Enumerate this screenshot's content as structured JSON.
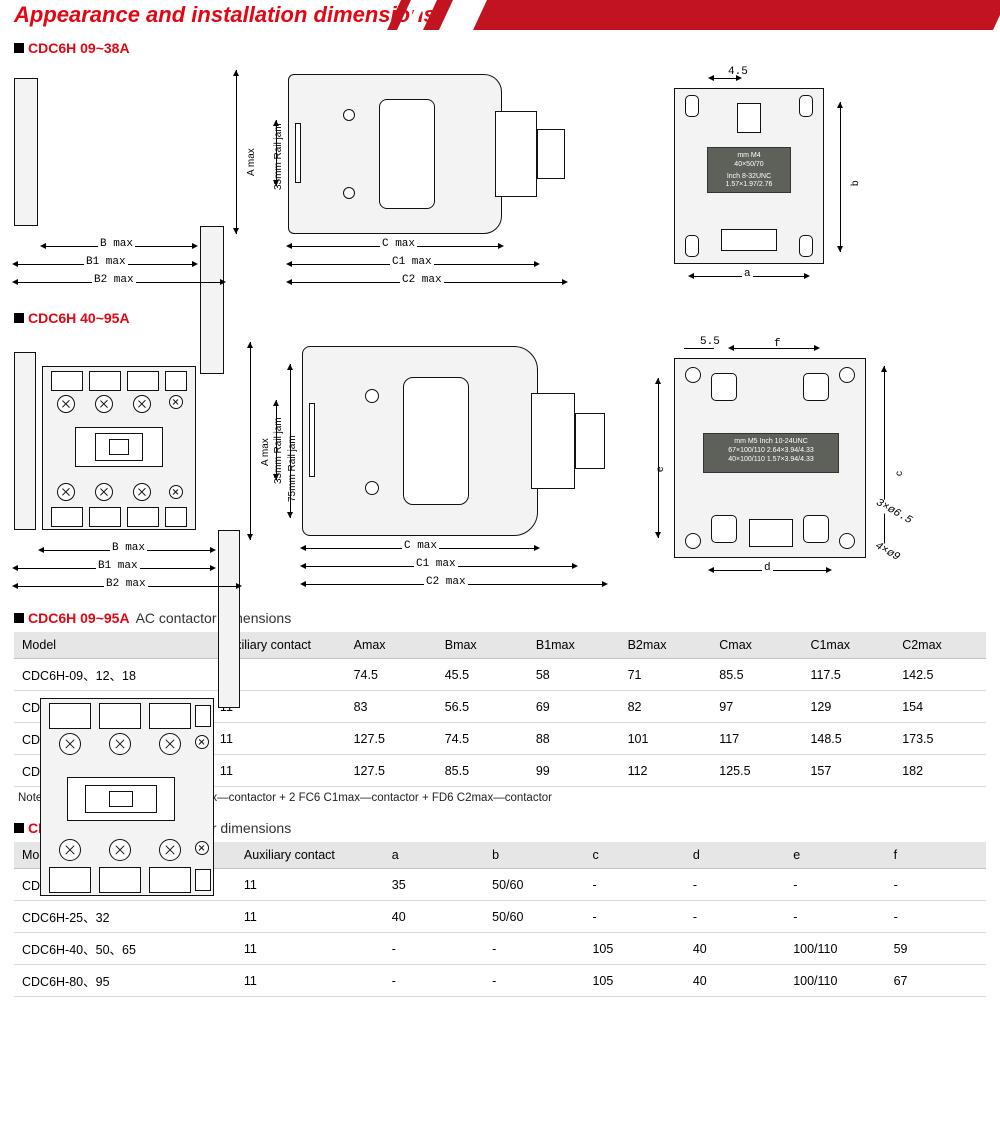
{
  "header": {
    "title": "Appearance and installation dimensions"
  },
  "sections": {
    "s1": "CDC6H 09~38A",
    "s2": "CDC6H 40~95A",
    "t1_red": "CDC6H 09~95A",
    "t1_sub": "AC contactor dimensions",
    "t2_red": "CDC6H 09~95A",
    "t2_sub": "AC contactor dimensions"
  },
  "dim_labels": {
    "A": "A max",
    "B": "B max",
    "B1": "B1 max",
    "B2": "B2 max",
    "C": "C max",
    "C1": "C1 max",
    "C2": "C2 max",
    "rail35": "35mm Rail jam",
    "rail75": "75mm Rail jam",
    "a": "a",
    "b": "b",
    "c": "c",
    "d": "d",
    "e": "e",
    "f": "f",
    "four_five": "4.5",
    "five_five": "5.5",
    "hole1": "3×ø6.5",
    "hole2": "4×ø9"
  },
  "mount1": {
    "ln1": "mm   M4",
    "ln2": "40×50/70",
    "ln3": "Inch 8-32UNC",
    "ln4": "1.57×1.97/2.76"
  },
  "mount2": {
    "ln1": "mm   M5   Inch 10-24UNC",
    "ln2": "67×100/110   2.64×3.94/4.33",
    "ln3": "40×100/110   1.57×3.94/4.33"
  },
  "colors": {
    "brand": "#e30613",
    "band": "#c11420",
    "th_bg": "#e6e6e6",
    "border": "#d9d9d9",
    "gray": "#f3f3f3"
  },
  "table1": {
    "columns": [
      "Model",
      "Auxiliary contact",
      "Amax",
      "Bmax",
      "B1max",
      "B2max",
      "Cmax",
      "C1max",
      "C2max"
    ],
    "rows": [
      [
        "CDC6H-09、12、18",
        "11",
        "74.5",
        "45.5",
        "58",
        "71",
        "85.5",
        "117.5",
        "142.5"
      ],
      [
        "CDC6H-25、32",
        "11",
        "83",
        "56.5",
        "69",
        "82",
        "97",
        "129",
        "154"
      ],
      [
        "CDC6H-40、50、65",
        "11",
        "127.5",
        "74.5",
        "88",
        "101",
        "117",
        "148.5",
        "173.5"
      ],
      [
        "CDC6H-80、95",
        "11",
        "127.5",
        "85.5",
        "99",
        "112",
        "125.5",
        "157",
        "182"
      ]
    ],
    "note": "Note: B1max—contactor + FC6 B2max—contactor + 2 FC6 C1max—contactor + FD6 C2max—contactor"
  },
  "table2": {
    "columns": [
      "Model",
      "Auxiliary contact",
      "a",
      "b",
      "c",
      "d",
      "e",
      "f"
    ],
    "rows": [
      [
        "CDC6H-09、12、18",
        "11",
        "35",
        "50/60",
        "-",
        "-",
        "-",
        "-"
      ],
      [
        "CDC6H-25、32",
        "11",
        "40",
        "50/60",
        "-",
        "-",
        "-",
        "-"
      ],
      [
        "CDC6H-40、50、65",
        "11",
        "-",
        "-",
        "105",
        "40",
        "100/110",
        "59"
      ],
      [
        "CDC6H-80、95",
        "11",
        "-",
        "-",
        "105",
        "40",
        "100/110",
        "67"
      ]
    ]
  }
}
